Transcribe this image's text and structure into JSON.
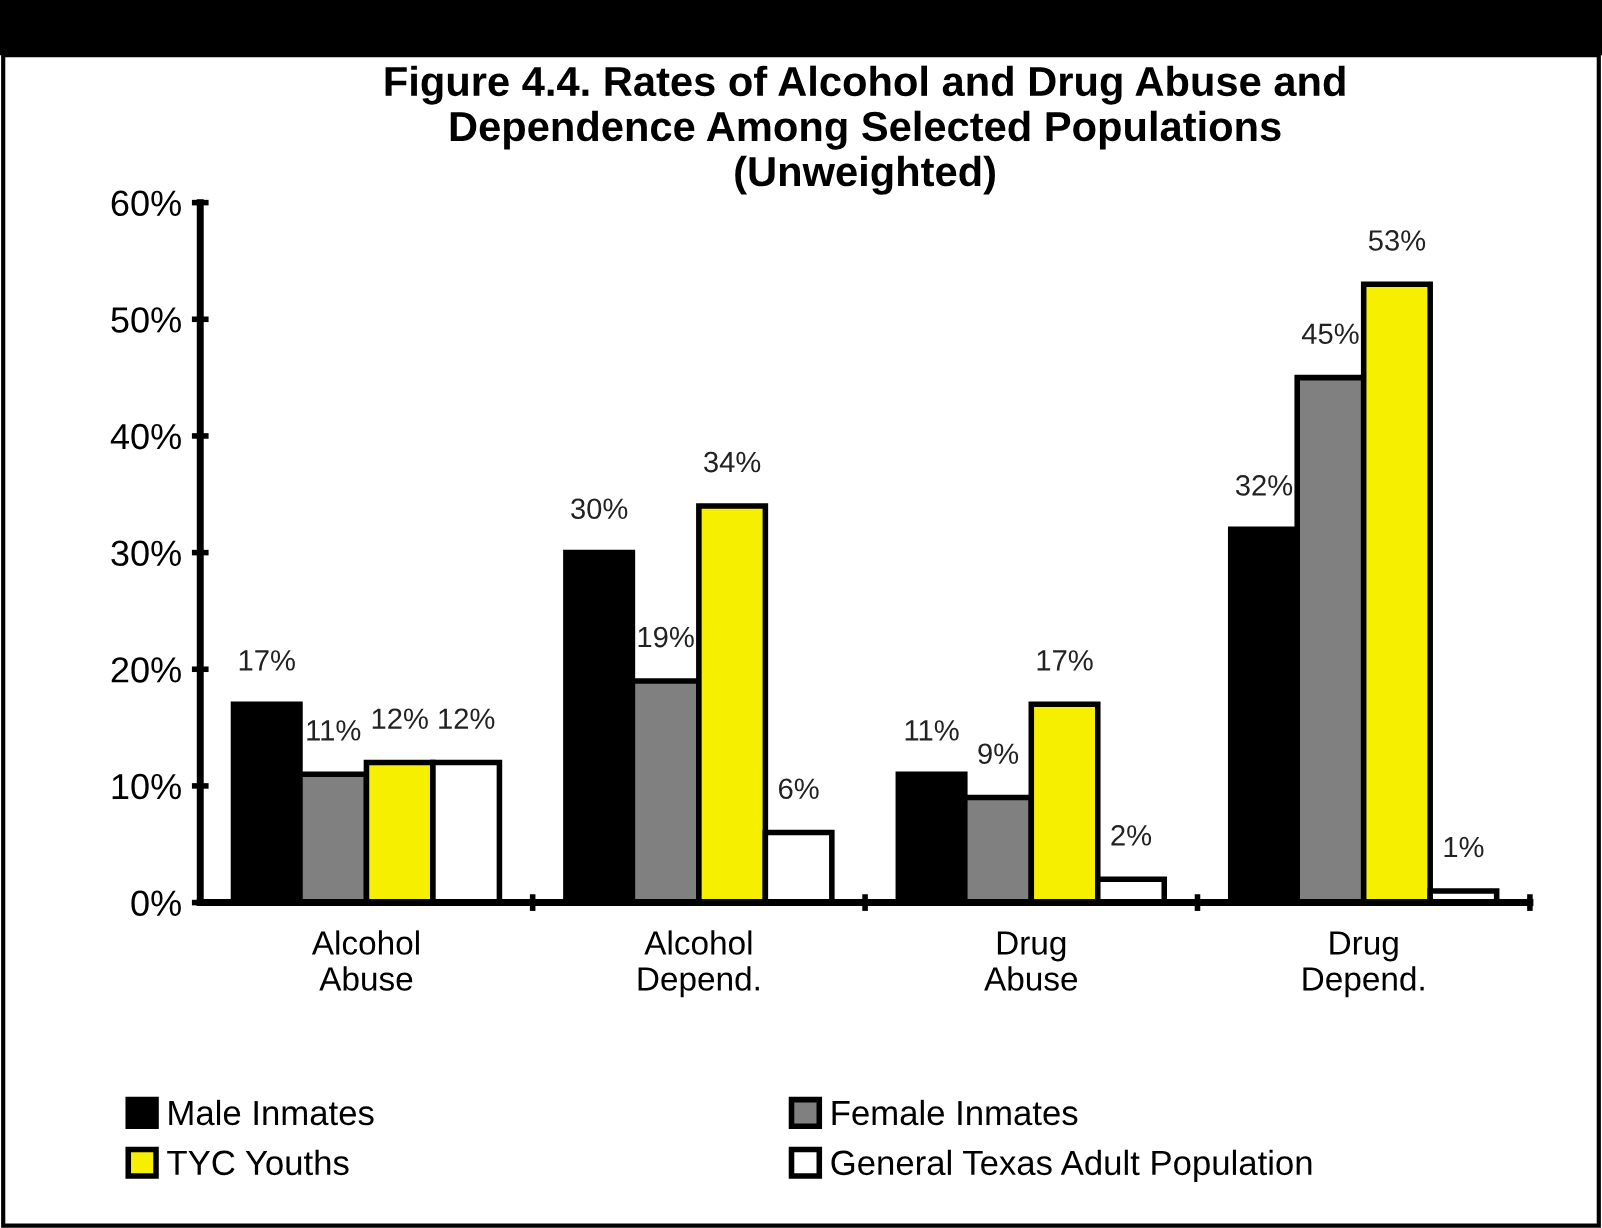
{
  "chart_data": {
    "type": "bar",
    "title": "Figure 4.4. Rates of Alcohol and Drug Abuse and\nDependence Among Selected Populations\n(Unweighted)",
    "categories": [
      "Alcohol\nAbuse",
      "Alcohol\nDepend.",
      "Drug\nAbuse",
      "Drug\nDepend."
    ],
    "series": [
      {
        "name": "Male Inmates",
        "color": "#000000",
        "values": [
          17,
          30,
          11,
          32
        ],
        "value_labels": [
          "17%",
          "30%",
          "11%",
          "32%"
        ]
      },
      {
        "name": "Female Inmates",
        "color": "#808080",
        "values": [
          11,
          19,
          9,
          45
        ],
        "value_labels": [
          "11%",
          "19%",
          "9%",
          "45%"
        ]
      },
      {
        "name": "TYC Youths",
        "color": "#f7ef00",
        "values": [
          12,
          34,
          17,
          53
        ],
        "value_labels": [
          "12%",
          "34%",
          "17%",
          "53%"
        ]
      },
      {
        "name": "General Texas Adult Population",
        "color": "#ffffff",
        "values": [
          12,
          6,
          2,
          1
        ],
        "value_labels": [
          "12%",
          "6%",
          "2%",
          "1%"
        ]
      }
    ],
    "ylim": [
      0,
      60
    ],
    "yticks": [
      {
        "value": 0,
        "label": "0%"
      },
      {
        "value": 10,
        "label": "10%"
      },
      {
        "value": 20,
        "label": "20%"
      },
      {
        "value": 30,
        "label": "30%"
      },
      {
        "value": 40,
        "label": "40%"
      },
      {
        "value": 50,
        "label": "50%"
      },
      {
        "value": 60,
        "label": "60%"
      }
    ],
    "grid": false,
    "legend": "bottom"
  }
}
